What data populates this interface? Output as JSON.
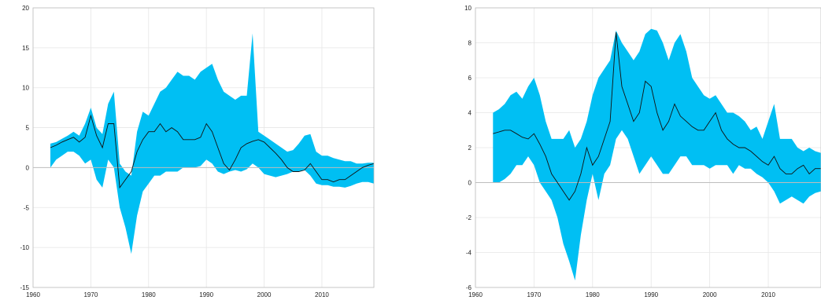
{
  "colors": {
    "band": "#00bff3",
    "line": "#111111"
  },
  "chart_data": [
    {
      "type": "area",
      "title": "",
      "xlabel": "",
      "ylabel": "",
      "xlim": [
        1960,
        2019
      ],
      "ylim": [
        -15,
        20
      ],
      "x_ticks": [
        "1960",
        "1970",
        "1980",
        "1990",
        "2000",
        "2010"
      ],
      "y_ticks": [
        "-15",
        "-10",
        "-5",
        "0",
        "5",
        "10",
        "15",
        "20"
      ],
      "grid": true,
      "series": [
        {
          "role": "band",
          "x": [
            1963,
            1964,
            1965,
            1966,
            1967,
            1968,
            1969,
            1970,
            1971,
            1972,
            1973,
            1974,
            1975,
            1976,
            1977,
            1978,
            1979,
            1980,
            1981,
            1982,
            1983,
            1984,
            1985,
            1986,
            1987,
            1988,
            1989,
            1990,
            1991,
            1992,
            1993,
            1994,
            1995,
            1996,
            1997,
            1998,
            1999,
            2000,
            2001,
            2002,
            2003,
            2004,
            2005,
            2006,
            2007,
            2008,
            2009,
            2010,
            2011,
            2012,
            2013,
            2014,
            2015,
            2016,
            2017,
            2018,
            2019
          ],
          "upper": [
            3.0,
            3.2,
            3.6,
            4.0,
            4.5,
            4.0,
            5.5,
            7.5,
            5.0,
            4.2,
            8.0,
            9.5,
            0.5,
            -0.5,
            -1.0,
            4.5,
            7.0,
            6.5,
            8.0,
            9.5,
            10.0,
            11.0,
            12.0,
            11.5,
            11.5,
            11.0,
            12.0,
            12.5,
            13.0,
            11.0,
            9.5,
            9.0,
            8.5,
            9.0,
            9.0,
            16.8,
            4.5,
            4.0,
            3.5,
            3.0,
            2.5,
            2.0,
            2.2,
            3.0,
            4.0,
            4.2,
            2.0,
            1.5,
            1.5,
            1.2,
            1.0,
            0.8,
            0.8,
            0.5,
            0.5,
            0.6,
            0.6
          ],
          "lower": [
            0.0,
            1.0,
            1.5,
            2.0,
            2.0,
            1.5,
            0.5,
            1.0,
            -1.5,
            -2.5,
            1.0,
            0.0,
            -5.0,
            -7.5,
            -10.8,
            -6.0,
            -3.0,
            -2.0,
            -1.0,
            -1.0,
            -0.5,
            -0.5,
            -0.5,
            0.0,
            0.0,
            0.0,
            0.2,
            1.0,
            0.5,
            -0.5,
            -0.8,
            -0.5,
            -0.3,
            -0.5,
            -0.2,
            0.5,
            0.0,
            -0.8,
            -1.0,
            -1.2,
            -1.0,
            -0.8,
            -0.5,
            -0.5,
            -0.3,
            -1.0,
            -2.0,
            -2.2,
            -2.2,
            -2.4,
            -2.4,
            -2.5,
            -2.3,
            -2.0,
            -1.8,
            -1.8,
            -2.0
          ]
        },
        {
          "role": "line",
          "x": [
            1963,
            1964,
            1965,
            1966,
            1967,
            1968,
            1969,
            1970,
            1971,
            1972,
            1973,
            1974,
            1975,
            1976,
            1977,
            1978,
            1979,
            1980,
            1981,
            1982,
            1983,
            1984,
            1985,
            1986,
            1987,
            1988,
            1989,
            1990,
            1991,
            1992,
            1993,
            1994,
            1995,
            1996,
            1997,
            1998,
            1999,
            2000,
            2001,
            2002,
            2003,
            2004,
            2005,
            2006,
            2007,
            2008,
            2009,
            2010,
            2011,
            2012,
            2013,
            2014,
            2015,
            2016,
            2017,
            2018,
            2019
          ],
          "values": [
            2.5,
            2.8,
            3.2,
            3.5,
            3.8,
            3.2,
            3.8,
            6.5,
            4.0,
            2.5,
            5.5,
            5.5,
            -2.5,
            -1.5,
            -0.5,
            2.0,
            3.5,
            4.5,
            4.5,
            5.5,
            4.5,
            5.0,
            4.5,
            3.5,
            3.5,
            3.5,
            3.8,
            5.5,
            4.5,
            2.5,
            0.5,
            -0.3,
            1.0,
            2.5,
            3.0,
            3.3,
            3.5,
            3.2,
            2.5,
            1.8,
            1.0,
            0.0,
            -0.5,
            -0.5,
            -0.3,
            0.5,
            -0.5,
            -1.5,
            -1.5,
            -1.8,
            -1.5,
            -1.5,
            -1.0,
            -0.5,
            0.0,
            0.3,
            0.5
          ]
        }
      ]
    },
    {
      "type": "area",
      "title": "",
      "xlabel": "",
      "ylabel": "",
      "xlim": [
        1960,
        2019
      ],
      "ylim": [
        -6,
        10
      ],
      "x_ticks": [
        "1960",
        "1970",
        "1980",
        "1990",
        "2000",
        "2010"
      ],
      "y_ticks": [
        "-6",
        "-4",
        "-2",
        "0",
        "2",
        "4",
        "6",
        "8",
        "10"
      ],
      "grid": true,
      "series": [
        {
          "role": "band",
          "x": [
            1963,
            1964,
            1965,
            1966,
            1967,
            1968,
            1969,
            1970,
            1971,
            1972,
            1973,
            1974,
            1975,
            1976,
            1977,
            1978,
            1979,
            1980,
            1981,
            1982,
            1983,
            1984,
            1985,
            1986,
            1987,
            1988,
            1989,
            1990,
            1991,
            1992,
            1993,
            1994,
            1995,
            1996,
            1997,
            1998,
            1999,
            2000,
            2001,
            2002,
            2003,
            2004,
            2005,
            2006,
            2007,
            2008,
            2009,
            2010,
            2011,
            2012,
            2013,
            2014,
            2015,
            2016,
            2017,
            2018,
            2019
          ],
          "upper": [
            4.0,
            4.2,
            4.5,
            5.0,
            5.2,
            4.8,
            5.5,
            6.0,
            5.0,
            3.5,
            2.5,
            2.5,
            2.5,
            3.0,
            2.0,
            2.5,
            3.5,
            5.0,
            6.0,
            6.5,
            7.0,
            8.7,
            8.0,
            7.5,
            7.0,
            7.5,
            8.5,
            8.8,
            8.7,
            8.0,
            7.0,
            8.0,
            8.5,
            7.5,
            6.0,
            5.5,
            5.0,
            4.8,
            5.0,
            4.5,
            4.0,
            4.0,
            3.8,
            3.5,
            3.0,
            3.2,
            2.5,
            3.5,
            4.5,
            2.5,
            2.5,
            2.5,
            2.0,
            1.8,
            2.0,
            1.8,
            1.7
          ],
          "lower": [
            0.0,
            0.0,
            0.2,
            0.5,
            1.0,
            1.0,
            1.5,
            1.0,
            0.0,
            -0.5,
            -1.0,
            -2.0,
            -3.5,
            -4.5,
            -5.6,
            -3.0,
            -1.0,
            0.5,
            -1.0,
            0.5,
            1.0,
            2.5,
            3.0,
            2.5,
            1.5,
            0.5,
            1.0,
            1.5,
            1.0,
            0.5,
            0.5,
            1.0,
            1.5,
            1.5,
            1.0,
            1.0,
            1.0,
            0.8,
            1.0,
            1.0,
            1.0,
            0.5,
            1.0,
            0.8,
            0.8,
            0.5,
            0.3,
            0.0,
            -0.5,
            -1.2,
            -1.0,
            -0.8,
            -1.0,
            -1.2,
            -0.8,
            -0.6,
            -0.5
          ]
        },
        {
          "role": "line",
          "x": [
            1963,
            1964,
            1965,
            1966,
            1967,
            1968,
            1969,
            1970,
            1971,
            1972,
            1973,
            1974,
            1975,
            1976,
            1977,
            1978,
            1979,
            1980,
            1981,
            1982,
            1983,
            1984,
            1985,
            1986,
            1987,
            1988,
            1989,
            1990,
            1991,
            1992,
            1993,
            1994,
            1995,
            1996,
            1997,
            1998,
            1999,
            2000,
            2001,
            2002,
            2003,
            2004,
            2005,
            2006,
            2007,
            2008,
            2009,
            2010,
            2011,
            2012,
            2013,
            2014,
            2015,
            2016,
            2017,
            2018,
            2019
          ],
          "values": [
            2.8,
            2.9,
            3.0,
            3.0,
            2.8,
            2.6,
            2.5,
            2.8,
            2.2,
            1.5,
            0.5,
            0.0,
            -0.5,
            -1.0,
            -0.5,
            0.5,
            2.0,
            1.0,
            1.5,
            2.5,
            3.5,
            8.6,
            5.5,
            4.5,
            3.5,
            4.0,
            5.8,
            5.5,
            4.0,
            3.0,
            3.5,
            4.5,
            3.8,
            3.5,
            3.2,
            3.0,
            3.0,
            3.5,
            4.0,
            3.0,
            2.5,
            2.2,
            2.0,
            2.0,
            1.8,
            1.5,
            1.2,
            1.0,
            1.5,
            0.8,
            0.5,
            0.5,
            0.8,
            1.0,
            0.5,
            0.8,
            0.8
          ]
        }
      ]
    }
  ]
}
